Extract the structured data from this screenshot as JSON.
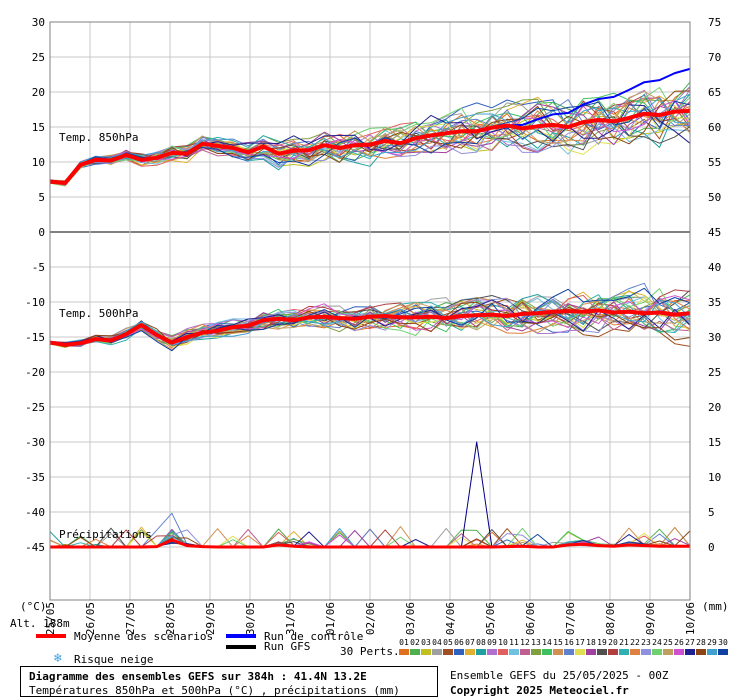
{
  "chart_data": {
    "type": "line",
    "x_dates": [
      "25/05",
      "26/05",
      "27/05",
      "28/05",
      "29/05",
      "30/05",
      "31/05",
      "01/06",
      "02/06",
      "03/06",
      "04/06",
      "05/06",
      "06/06",
      "07/06",
      "08/06",
      "09/06",
      "10/06"
    ],
    "left_axis": {
      "unit": "(°C)",
      "ticks": [
        30,
        25,
        20,
        15,
        10,
        5,
        0,
        -5,
        -10,
        -15,
        -20,
        -25,
        -30,
        -35,
        -40,
        -45
      ]
    },
    "right_axis": {
      "unit": "(mm)",
      "upper_ticks": [
        75,
        70,
        65,
        60,
        55,
        50,
        45
      ],
      "lower_ticks": [
        40,
        35,
        30,
        25,
        20,
        15,
        10,
        5,
        0
      ]
    },
    "panel_labels": {
      "t850": "Temp. 850hPa",
      "t500": "Temp. 500hPa",
      "precip": "Précipitations"
    },
    "series_t850_mean": [
      7.2,
      7.0,
      9.6,
      10.3,
      10.2,
      11.0,
      10.3,
      10.6,
      11.3,
      11.2,
      12.6,
      12.3,
      12.0,
      11.4,
      12.2,
      11.2,
      11.6,
      11.7,
      12.4,
      12.0,
      12.4,
      12.5,
      13.0,
      12.7,
      13.4,
      13.8,
      14.1,
      14.4,
      14.4,
      14.9,
      15.2,
      14.8,
      15.1,
      15.3,
      15.0,
      15.7,
      16.0,
      15.8,
      16.3,
      16.9,
      16.7,
      17.2,
      17.3
    ],
    "series_t500_mean": [
      -15.8,
      -16.1,
      -15.9,
      -15.3,
      -15.5,
      -14.6,
      -13.3,
      -14.7,
      -15.8,
      -15.0,
      -14.4,
      -14.1,
      -13.6,
      -13.4,
      -12.6,
      -12.4,
      -12.6,
      -12.2,
      -12.1,
      -12.3,
      -12.4,
      -12.1,
      -12.0,
      -12.2,
      -12.2,
      -12.1,
      -12.3,
      -12.0,
      -11.9,
      -11.8,
      -12.0,
      -11.7,
      -11.6,
      -11.4,
      -11.3,
      -11.4,
      -11.2,
      -11.5,
      -11.4,
      -11.6,
      -11.5,
      -11.8,
      -11.6
    ],
    "series_precip_mean": [
      0,
      0,
      0,
      0,
      0,
      0,
      0,
      0.05,
      1.0,
      0.2,
      0.05,
      0,
      0,
      0,
      0,
      0.3,
      0.1,
      0,
      0,
      0,
      0,
      0,
      0,
      0,
      0,
      0,
      0,
      0,
      0,
      0,
      0.05,
      0.1,
      0,
      0,
      0.3,
      0.4,
      0.2,
      0.1,
      0.3,
      0.2,
      0.1,
      0.1,
      0.1
    ],
    "precip_peak_mm": 15
  },
  "legend": {
    "mean": "Moyenne des scénarios",
    "control": "Run de contrôle",
    "gfs": "Run GFS",
    "snow": "Risque neige",
    "perts": "30 Perts.",
    "alt": "Alt. 188m"
  },
  "pert_numbers": [
    "01",
    "02",
    "03",
    "04",
    "05",
    "06",
    "07",
    "08",
    "09",
    "10",
    "11",
    "12",
    "13",
    "14",
    "15",
    "16",
    "17",
    "18",
    "19",
    "20",
    "21",
    "22",
    "23",
    "24",
    "25",
    "26",
    "27",
    "28",
    "29",
    "30"
  ],
  "pert_colors": [
    "#e07020",
    "#50b050",
    "#c0c020",
    "#a0a0a0",
    "#a05020",
    "#3060c0",
    "#e0b030",
    "#20a0a0",
    "#b070d0",
    "#e06060",
    "#70c0e0",
    "#c06090",
    "#80a040",
    "#40c060",
    "#d09050",
    "#6080d0",
    "#e0e050",
    "#a040a0",
    "#505050",
    "#b04040",
    "#30b0b0",
    "#e08040",
    "#9090e0",
    "#70d070",
    "#c0a060",
    "#d050d0",
    "#202090",
    "#8b4513",
    "#40a0d0",
    "#1040a0"
  ],
  "info": {
    "title": "Diagramme des ensembles GEFS sur 384h : 41.4N 13.2E",
    "subtitle": "Températures 850hPa et 500hPa (°C) , précipitations (mm)",
    "run": "Ensemble GEFS du 25/05/2025 - 00Z",
    "copyright": "Copyright 2025 Meteociel.fr"
  },
  "colors": {
    "mean": "#ff0000",
    "control": "#0000ff",
    "gfs": "#000000",
    "grid": "#c8c8c8"
  }
}
